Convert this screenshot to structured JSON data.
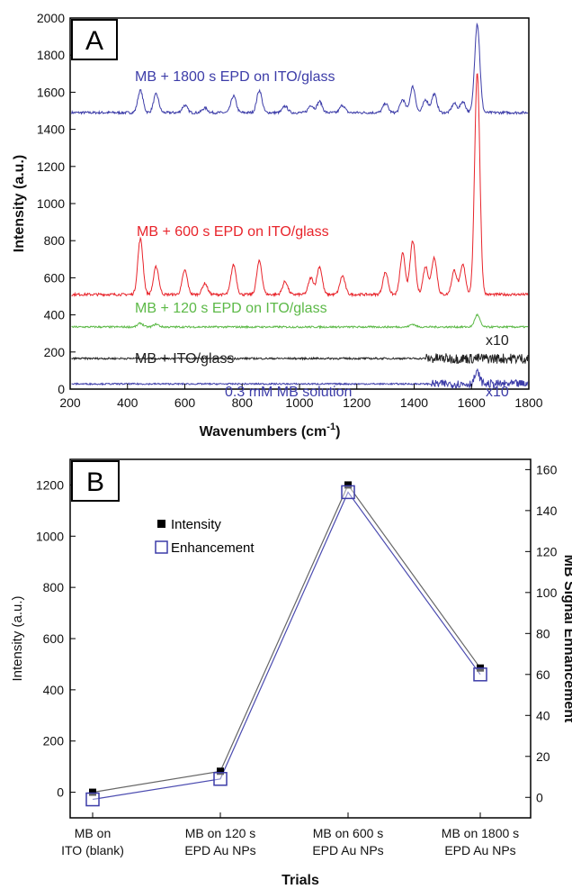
{
  "chart_data": [
    {
      "type": "line",
      "panel_label": "A",
      "xlabel": "Wavenumbers (cm",
      "xlabel_sup": "-1",
      "xlabel_end": ")",
      "ylabel": "Intensity (a.u.)",
      "xlim": [
        200,
        1800
      ],
      "ylim": [
        0,
        2000
      ],
      "xticks": [
        "200",
        "400",
        "600",
        "800",
        "1000",
        "1200",
        "1400",
        "1600",
        "1800"
      ],
      "yticks": [
        "0",
        "200",
        "400",
        "600",
        "800",
        "1000",
        "1200",
        "1400",
        "1600",
        "1800",
        "2000"
      ],
      "series": [
        {
          "label": "MB + 1800 s EPD on ITO/glass",
          "color": "#3c3ca8",
          "baseline": 1490,
          "noise": 7,
          "peaks": [
            [
              445,
              120
            ],
            [
              500,
              100
            ],
            [
              600,
              40
            ],
            [
              670,
              25
            ],
            [
              770,
              90
            ],
            [
              860,
              120
            ],
            [
              950,
              35
            ],
            [
              1040,
              40
            ],
            [
              1070,
              60
            ],
            [
              1150,
              40
            ],
            [
              1300,
              50
            ],
            [
              1360,
              70
            ],
            [
              1395,
              140
            ],
            [
              1440,
              70
            ],
            [
              1470,
              100
            ],
            [
              1540,
              50
            ],
            [
              1570,
              60
            ],
            [
              1620,
              480
            ]
          ]
        },
        {
          "label": "MB + 600 s EPD on ITO/glass",
          "color": "#e8242b",
          "baseline": 510,
          "noise": 7,
          "peaks": [
            [
              445,
              300
            ],
            [
              500,
              150
            ],
            [
              600,
              130
            ],
            [
              670,
              60
            ],
            [
              770,
              160
            ],
            [
              860,
              180
            ],
            [
              950,
              70
            ],
            [
              1040,
              90
            ],
            [
              1070,
              150
            ],
            [
              1150,
              100
            ],
            [
              1300,
              120
            ],
            [
              1360,
              220
            ],
            [
              1395,
              290
            ],
            [
              1440,
              150
            ],
            [
              1470,
              200
            ],
            [
              1540,
              130
            ],
            [
              1570,
              160
            ],
            [
              1620,
              1200
            ]
          ]
        },
        {
          "label": "MB + 120 s EPD on ITO/glass",
          "color": "#5cb947",
          "baseline": 335,
          "noise": 5,
          "peaks": [
            [
              445,
              20
            ],
            [
              500,
              15
            ],
            [
              1395,
              15
            ],
            [
              1620,
              65
            ]
          ]
        },
        {
          "label": "MB + ITO/glass",
          "color": "#222222",
          "baseline": 165,
          "noise": 5,
          "x10_from": 1440,
          "x10_noise": 28,
          "x10_label": "x10",
          "peaks": []
        },
        {
          "label": "0.3 mM MB solution",
          "color": "#3c3ca8",
          "baseline": 28,
          "noise": 4,
          "x10_from": 1460,
          "x10_noise": 22,
          "x10_label": "x10",
          "peaks": [
            [
              1620,
              60
            ]
          ]
        }
      ]
    },
    {
      "type": "line",
      "panel_label": "B",
      "xlabel": "Trials",
      "ylabel": "Intensity (a.u.)",
      "ylabel_right": "MB Signal Enhancement",
      "ylim": [
        -100,
        1300
      ],
      "ylim_right": [
        -10,
        165
      ],
      "yticks": [
        "0",
        "200",
        "400",
        "600",
        "800",
        "1000",
        "1200"
      ],
      "yticks_right": [
        "0",
        "20",
        "40",
        "60",
        "80",
        "100",
        "120",
        "140",
        "160"
      ],
      "categories": [
        [
          "MB on",
          "ITO (blank)"
        ],
        [
          "MB on 120 s",
          "EPD Au NPs"
        ],
        [
          "MB on 600 s",
          "EPD Au NPs"
        ],
        [
          "MB on 1800 s",
          "EPD Au NPs"
        ]
      ],
      "series": [
        {
          "name": "Intensity",
          "axis": "left",
          "color": "#000000",
          "line_color": "#666666",
          "marker": "filled-square",
          "values": [
            0,
            82,
            1200,
            485
          ]
        },
        {
          "name": "Enhancement",
          "axis": "right",
          "color": "#3c3ca8",
          "line_color": "#4b4bb0",
          "marker": "open-square",
          "values": [
            -1,
            9,
            149,
            60
          ]
        }
      ]
    }
  ]
}
